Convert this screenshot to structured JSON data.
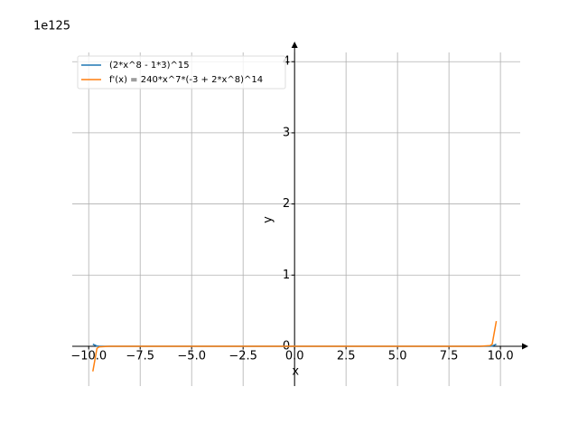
{
  "chart_data": {
    "type": "line",
    "offset_label": "1e125",
    "xlabel": "x",
    "ylabel": "y",
    "xlim": [
      -10.8,
      10.96
    ],
    "ylim": [
      -0.56,
      4.13
    ],
    "xticks": [
      {
        "value": -10,
        "label": "−10.0"
      },
      {
        "value": -7.5,
        "label": "−7.5"
      },
      {
        "value": -5,
        "label": "−5.0"
      },
      {
        "value": -2.5,
        "label": "−2.5"
      },
      {
        "value": 0,
        "label": "0.0"
      },
      {
        "value": 2.5,
        "label": "2.5"
      },
      {
        "value": 5,
        "label": "5.0"
      },
      {
        "value": 7.5,
        "label": "7.5"
      },
      {
        "value": 10,
        "label": "10.0"
      }
    ],
    "yticks": [
      0,
      1,
      2,
      3,
      4
    ],
    "grid": true,
    "legend": "upper left",
    "x": [
      -9.8,
      -9.6,
      -9.5,
      -9,
      0,
      9,
      9.5,
      9.6,
      9.8
    ],
    "series": [
      {
        "name": "(2*x^8 - 1*3)^15",
        "color": "#1f77b4",
        "values": [
          0.029,
          0.0025,
          0.0007,
          0,
          0,
          0,
          0.0007,
          0.0025,
          0.029
        ]
      },
      {
        "name": "f'(x) = 240*x^7*(-3 + 2*x^8)^14",
        "color": "#ff7f0e",
        "values": [
          -0.354,
          -0.03,
          -0.0087,
          0,
          0,
          0,
          0.0087,
          0.03,
          0.354
        ]
      }
    ]
  }
}
